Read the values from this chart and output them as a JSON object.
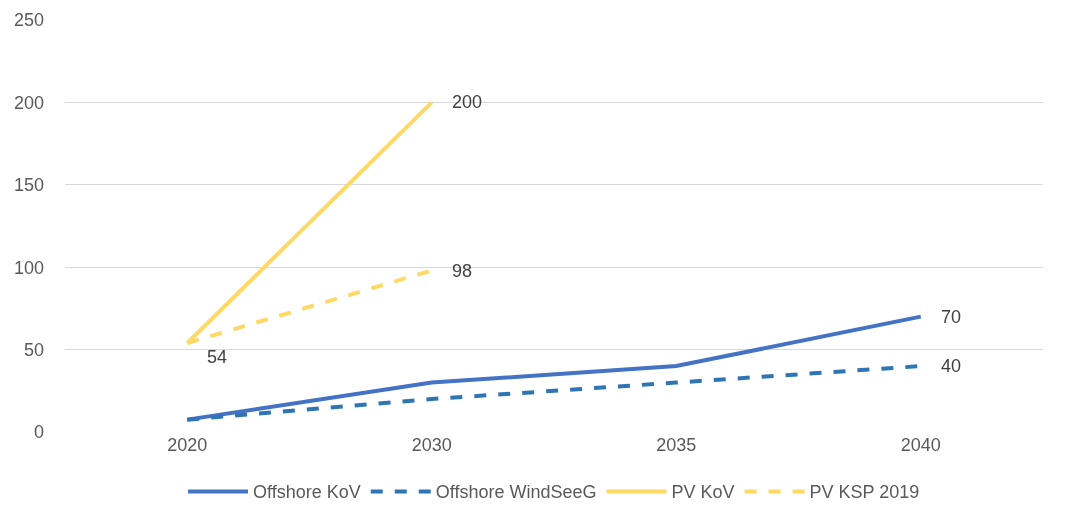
{
  "chart_data": {
    "type": "line",
    "categories": [
      "2020",
      "2030",
      "2035",
      "2040"
    ],
    "ylim": [
      0,
      250
    ],
    "yticks": [
      0,
      50,
      100,
      150,
      200,
      250
    ],
    "grid": "y",
    "legend": "bottom",
    "marker": "none",
    "series": [
      {
        "name": "Offshore KoV",
        "color": "#4472c4",
        "line_style": "solid",
        "values": [
          7.5,
          30,
          40,
          70
        ],
        "value_labels": [
          null,
          null,
          null,
          "70"
        ]
      },
      {
        "name": "Offshore WindSeeG",
        "color": "#2e75b6",
        "line_style": "dashed",
        "values": [
          7.5,
          20,
          30,
          40
        ],
        "value_labels": [
          null,
          null,
          null,
          "40"
        ]
      },
      {
        "name": "PV KoV",
        "color": "#ffd966",
        "line_style": "solid",
        "values": [
          54,
          200,
          null,
          null
        ],
        "value_labels": [
          null,
          "200",
          null,
          null
        ]
      },
      {
        "name": "PV KSP 2019",
        "color": "#ffd966",
        "line_style": "dashed",
        "values": [
          54,
          98,
          null,
          null
        ],
        "value_labels": [
          "54",
          "98",
          null,
          null
        ]
      }
    ]
  }
}
